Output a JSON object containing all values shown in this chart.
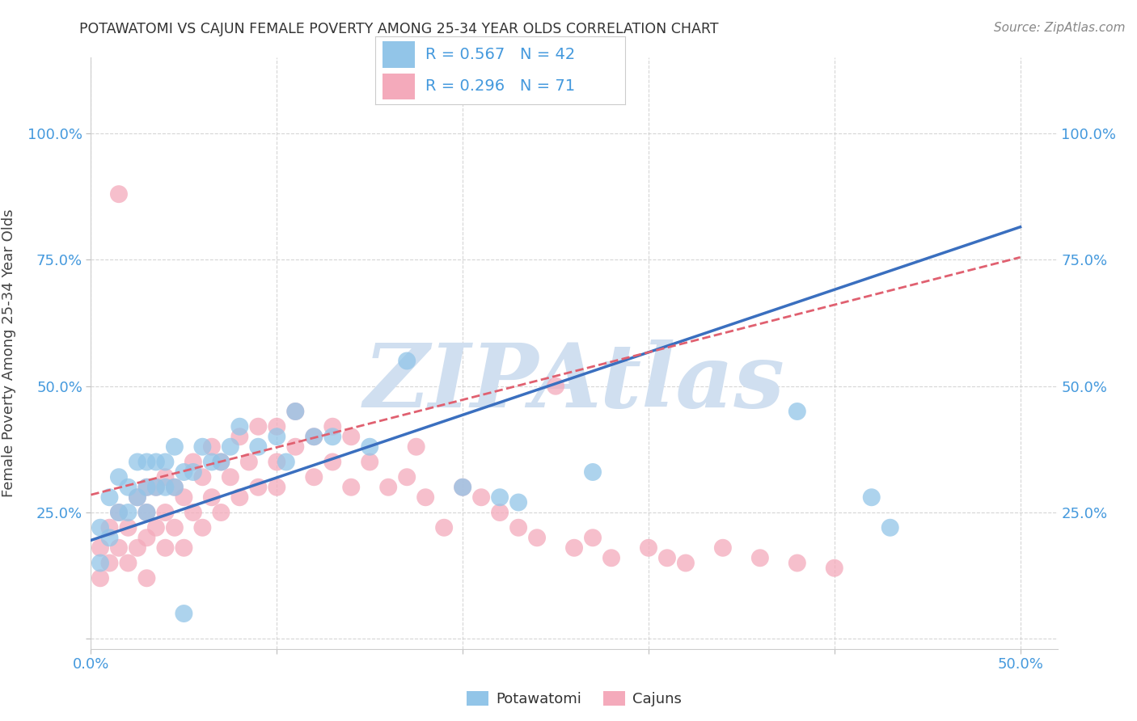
{
  "title": "POTAWATOMI VS CAJUN FEMALE POVERTY AMONG 25-34 YEAR OLDS CORRELATION CHART",
  "source": "Source: ZipAtlas.com",
  "ylabel": "Female Poverty Among 25-34 Year Olds",
  "xlim": [
    0.0,
    0.52
  ],
  "ylim": [
    -0.02,
    1.15
  ],
  "potawatomi_R": 0.567,
  "potawatomi_N": 42,
  "cajun_R": 0.296,
  "cajun_N": 71,
  "potawatomi_color": "#92C5E8",
  "cajun_color": "#F4AABB",
  "potawatomi_line_color": "#3A6FBF",
  "cajun_line_color": "#E06070",
  "watermark": "ZIPAtlas",
  "watermark_color": "#D0DFF0",
  "background_color": "#FFFFFF",
  "grid_color": "#CCCCCC",
  "tick_label_color": "#4499DD",
  "title_color": "#333333",
  "potawatomi_line_x0": 0.0,
  "potawatomi_line_y0": 0.195,
  "potawatomi_line_x1": 0.5,
  "potawatomi_line_y1": 0.815,
  "cajun_line_x0": 0.0,
  "cajun_line_y0": 0.285,
  "cajun_line_x1": 0.5,
  "cajun_line_y1": 0.755,
  "potawatomi_x": [
    0.005,
    0.005,
    0.01,
    0.01,
    0.015,
    0.015,
    0.02,
    0.02,
    0.025,
    0.025,
    0.03,
    0.03,
    0.03,
    0.035,
    0.035,
    0.04,
    0.04,
    0.045,
    0.045,
    0.05,
    0.055,
    0.06,
    0.065,
    0.07,
    0.075,
    0.08,
    0.09,
    0.1,
    0.105,
    0.11,
    0.12,
    0.13,
    0.15,
    0.17,
    0.2,
    0.22,
    0.23,
    0.27,
    0.38,
    0.42,
    0.43,
    0.05
  ],
  "potawatomi_y": [
    0.15,
    0.22,
    0.2,
    0.28,
    0.25,
    0.32,
    0.25,
    0.3,
    0.28,
    0.35,
    0.25,
    0.3,
    0.35,
    0.3,
    0.35,
    0.3,
    0.35,
    0.3,
    0.38,
    0.33,
    0.33,
    0.38,
    0.35,
    0.35,
    0.38,
    0.42,
    0.38,
    0.4,
    0.35,
    0.45,
    0.4,
    0.4,
    0.38,
    0.55,
    0.3,
    0.28,
    0.27,
    0.33,
    0.45,
    0.28,
    0.22,
    0.05
  ],
  "cajun_x": [
    0.005,
    0.005,
    0.01,
    0.01,
    0.015,
    0.015,
    0.02,
    0.02,
    0.025,
    0.025,
    0.03,
    0.03,
    0.03,
    0.03,
    0.035,
    0.035,
    0.04,
    0.04,
    0.04,
    0.045,
    0.045,
    0.05,
    0.05,
    0.055,
    0.055,
    0.06,
    0.06,
    0.065,
    0.065,
    0.07,
    0.07,
    0.075,
    0.08,
    0.08,
    0.085,
    0.09,
    0.09,
    0.1,
    0.1,
    0.11,
    0.11,
    0.12,
    0.12,
    0.13,
    0.13,
    0.14,
    0.14,
    0.15,
    0.16,
    0.17,
    0.175,
    0.18,
    0.19,
    0.2,
    0.21,
    0.22,
    0.23,
    0.24,
    0.26,
    0.27,
    0.28,
    0.3,
    0.31,
    0.32,
    0.34,
    0.36,
    0.38,
    0.4,
    0.25,
    0.1,
    0.015
  ],
  "cajun_y": [
    0.12,
    0.18,
    0.15,
    0.22,
    0.18,
    0.25,
    0.15,
    0.22,
    0.18,
    0.28,
    0.12,
    0.2,
    0.25,
    0.3,
    0.22,
    0.3,
    0.18,
    0.25,
    0.32,
    0.22,
    0.3,
    0.18,
    0.28,
    0.25,
    0.35,
    0.22,
    0.32,
    0.28,
    0.38,
    0.25,
    0.35,
    0.32,
    0.28,
    0.4,
    0.35,
    0.3,
    0.42,
    0.35,
    0.42,
    0.38,
    0.45,
    0.32,
    0.4,
    0.35,
    0.42,
    0.3,
    0.4,
    0.35,
    0.3,
    0.32,
    0.38,
    0.28,
    0.22,
    0.3,
    0.28,
    0.25,
    0.22,
    0.2,
    0.18,
    0.2,
    0.16,
    0.18,
    0.16,
    0.15,
    0.18,
    0.16,
    0.15,
    0.14,
    0.5,
    0.3,
    0.88
  ]
}
